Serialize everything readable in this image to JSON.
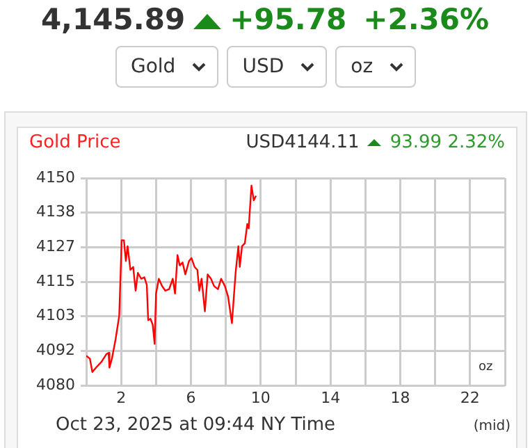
{
  "chart_data": {
    "type": "line",
    "title": "Gold Price",
    "subtitle": "USD4144.11",
    "annotations": [
      "4,145.89",
      "+95.78",
      "+2.36%",
      "Gold",
      "USD",
      "oz",
      "93.99 2.32%",
      "oz",
      "Oct 23, 2025 at 09:44 NY Time",
      "(mid)"
    ],
    "x": [
      0,
      0.21,
      0.35,
      0.56,
      0.88,
      1.15,
      1.28,
      1.33,
      1.47,
      1.68,
      1.89,
      2.03,
      2.16,
      2.27,
      2.37,
      2.53,
      2.69,
      2.83,
      2.96,
      3.15,
      3.33,
      3.47,
      3.55,
      3.68,
      3.81,
      3.92,
      4.0,
      4.16,
      4.35,
      4.53,
      4.75,
      4.96,
      5.09,
      5.23,
      5.36,
      5.52,
      5.68,
      5.89,
      6.03,
      6.21,
      6.37,
      6.48,
      6.61,
      6.8,
      6.96,
      7.15,
      7.33,
      7.55,
      7.73,
      7.95,
      8.13,
      8.35,
      8.56,
      8.72,
      8.8,
      8.93,
      9.09,
      9.23,
      9.31,
      9.47,
      9.6,
      9.73
    ],
    "values": [
      4090,
      4089,
      4084.5,
      4086,
      4088,
      4090.5,
      4091,
      4086,
      4089,
      4095.5,
      4103.5,
      4129,
      4129,
      4122,
      4127,
      4119,
      4120,
      4112,
      4118,
      4116,
      4116.5,
      4114,
      4102,
      4102.5,
      4100.5,
      4094,
      4111,
      4116,
      4113.5,
      4112,
      4112.5,
      4116,
      4111,
      4124,
      4120.5,
      4121.5,
      4117.5,
      4122,
      4123,
      4120,
      4119,
      4112,
      4116,
      4105,
      4117.5,
      4116,
      4113.5,
      4112.5,
      4116,
      4113.5,
      4110,
      4101,
      4118,
      4127,
      4120,
      4127,
      4128,
      4134.5,
      4133,
      4147.5,
      4142.5,
      4144
    ],
    "color": "#ff0000",
    "xlim": [
      0,
      24
    ],
    "xticks": [
      {
        "value": 0,
        "label": null
      },
      2,
      {
        "value": 4,
        "label": null
      },
      6,
      {
        "value": 8,
        "label": null
      },
      10,
      {
        "value": 12,
        "label": null
      },
      14,
      {
        "value": 16,
        "label": null
      },
      18,
      {
        "value": 20,
        "label": null
      },
      22,
      {
        "value": 24,
        "label": null
      }
    ],
    "ylim": [
      4080,
      4150
    ],
    "yticks": [
      4080,
      {
        "value": 4091.67,
        "label": "4092"
      },
      {
        "value": 4103.33,
        "label": "4103"
      },
      4115,
      {
        "value": 4126.67,
        "label": "4127"
      },
      {
        "value": 4138.33,
        "label": "4138"
      },
      4150
    ],
    "grid": true,
    "legend": false,
    "marker": "none",
    "line_style": "solid"
  }
}
